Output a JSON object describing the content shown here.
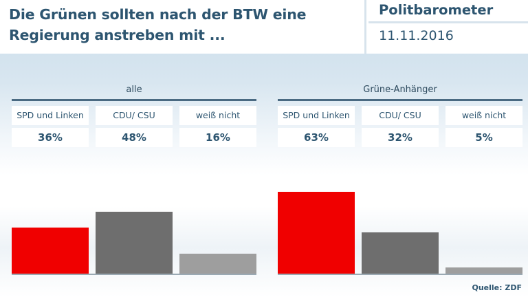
{
  "header": {
    "title_line1": "Die Grünen sollten nach der BTW eine",
    "title_line2": "Regierung anstreben mit ...",
    "brand": "Politbarometer",
    "date": "11.11.2016"
  },
  "source": "Quelle: ZDF",
  "colors": {
    "spd_linke": "#f00000",
    "cdu_csu": "#6e6e6e",
    "weiss_nicht": "#9e9e9e",
    "text": "#2d5570"
  },
  "chart_data": {
    "type": "bar",
    "title": "Die Grünen sollten nach der BTW eine Regierung anstreben mit ...",
    "categories": [
      "SPD und Linken",
      "CDU/ CSU",
      "weiß nicht"
    ],
    "ylim": [
      0,
      100
    ],
    "grid": false,
    "groups": [
      {
        "label": "alle",
        "values": [
          36,
          48,
          16
        ],
        "labels": [
          "36%",
          "48%",
          "16%"
        ]
      },
      {
        "label": "Grüne-Anhänger",
        "values": [
          63,
          32,
          5
        ],
        "labels": [
          "63%",
          "32%",
          "5%"
        ]
      }
    ]
  }
}
